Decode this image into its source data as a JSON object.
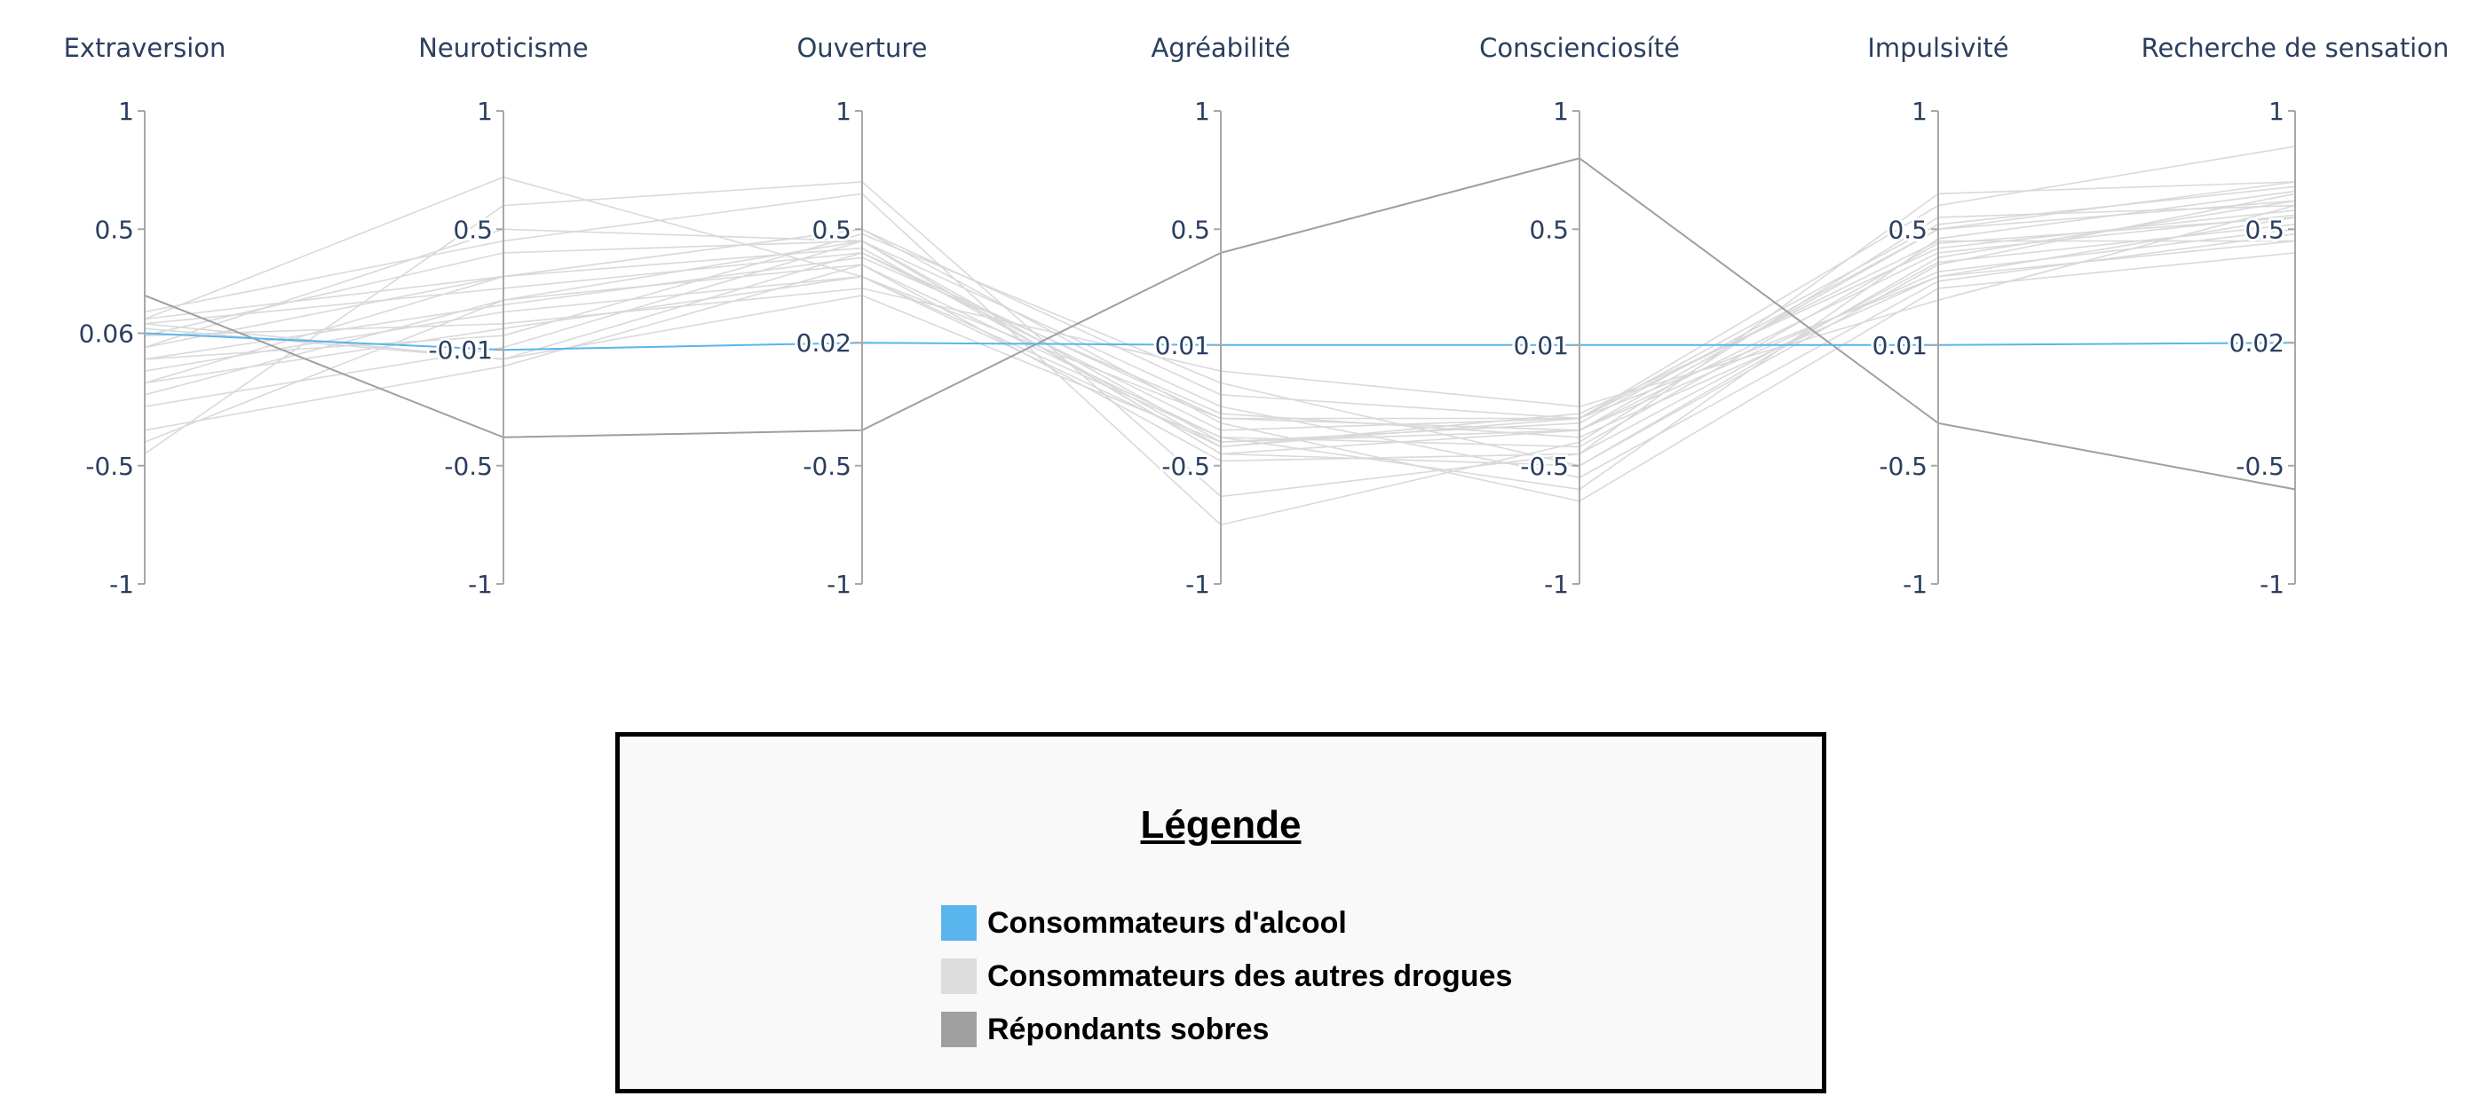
{
  "chart_data": {
    "type": "parallel_coordinates",
    "axes": [
      "Extraversion",
      "Neuroticisme",
      "Ouverture",
      "Agréabilité",
      "Conscienciosíté",
      "Impulsivité",
      "Recherche de sensation"
    ],
    "range": [
      -1,
      1
    ],
    "ticks": [
      [
        "-1",
        "-0.5",
        "0.06",
        "0.5",
        "1"
      ],
      [
        "-1",
        "-0.5",
        "-0.01",
        "0.5",
        "1"
      ],
      [
        "-1",
        "-0.5",
        "0.02",
        "0.5",
        "1"
      ],
      [
        "-1",
        "-0.5",
        "0.01",
        "0.5",
        "1"
      ],
      [
        "-1",
        "-0.5",
        "0.01",
        "0.5",
        "1"
      ],
      [
        "-1",
        "-0.5",
        "0.01",
        "0.5",
        "1"
      ],
      [
        "-1",
        "-0.5",
        "0.02",
        "0.5",
        "1"
      ]
    ],
    "tick_values": [
      [
        -1,
        -0.5,
        0.06,
        0.5,
        1
      ],
      [
        -1,
        -0.5,
        -0.01,
        0.5,
        1
      ],
      [
        -1,
        -0.5,
        0.02,
        0.5,
        1
      ],
      [
        -1,
        -0.5,
        0.01,
        0.5,
        1
      ],
      [
        -1,
        -0.5,
        0.01,
        0.5,
        1
      ],
      [
        -1,
        -0.5,
        0.01,
        0.5,
        1
      ],
      [
        -1,
        -0.5,
        0.02,
        0.5,
        1
      ]
    ],
    "series": [
      {
        "name": "Consommateurs d'alcool",
        "color": "#5ab4ee",
        "lines": [
          [
            0.06,
            -0.01,
            0.02,
            0.01,
            0.01,
            0.01,
            0.02
          ]
        ]
      },
      {
        "name": "Consommateurs des autres drogues",
        "color": "#d9d9d9",
        "lines": [
          [
            0.12,
            0.72,
            0.3,
            -0.3,
            -0.3,
            0.6,
            0.85
          ],
          [
            -0.45,
            0.6,
            0.7,
            -0.63,
            -0.45,
            0.65,
            0.7
          ],
          [
            0.15,
            0.45,
            0.65,
            -0.75,
            -0.4,
            0.55,
            0.6
          ],
          [
            0.0,
            0.5,
            0.45,
            -0.45,
            -0.5,
            0.35,
            0.65
          ],
          [
            -0.15,
            0.3,
            0.5,
            -0.2,
            -0.3,
            0.45,
            0.45
          ],
          [
            0.1,
            0.25,
            0.4,
            -0.35,
            -0.3,
            0.3,
            0.55
          ],
          [
            -0.4,
            0.2,
            0.45,
            -0.4,
            -0.35,
            0.5,
            0.7
          ],
          [
            0.05,
            0.1,
            0.25,
            -0.1,
            -0.25,
            0.2,
            0.6
          ],
          [
            -0.05,
            0.05,
            0.48,
            -0.15,
            -0.5,
            0.38,
            0.62
          ],
          [
            0.08,
            -0.05,
            0.4,
            -0.3,
            -0.35,
            0.32,
            0.5
          ],
          [
            -0.1,
            0.15,
            0.3,
            -0.42,
            -0.28,
            0.42,
            0.58
          ],
          [
            -0.25,
            0.0,
            0.45,
            -0.25,
            -0.55,
            0.28,
            0.48
          ],
          [
            -0.35,
            -0.08,
            0.35,
            -0.38,
            -0.6,
            0.46,
            0.66
          ],
          [
            0.0,
            0.3,
            0.5,
            -0.32,
            -0.65,
            0.25,
            0.4
          ],
          [
            0.05,
            0.4,
            0.45,
            -0.45,
            -0.35,
            0.4,
            0.56
          ],
          [
            -0.2,
            0.2,
            0.35,
            -0.48,
            -0.45,
            0.36,
            0.52
          ],
          [
            0.1,
            -0.05,
            0.22,
            -0.4,
            -0.32,
            0.5,
            0.62
          ],
          [
            -0.05,
            0.18,
            0.38,
            -0.28,
            -0.38,
            0.3,
            0.45
          ],
          [
            -0.15,
            0.08,
            0.3,
            -0.38,
            -0.42,
            0.44,
            0.55
          ],
          [
            0.12,
            0.3,
            0.42,
            -0.42,
            -0.3,
            0.52,
            0.68
          ]
        ]
      },
      {
        "name": "Répondants sobres",
        "color": "#9f9f9f",
        "lines": [
          [
            0.22,
            -0.38,
            -0.35,
            0.4,
            0.8,
            -0.32,
            -0.6
          ]
        ]
      }
    ]
  },
  "legend": {
    "title": "Légende",
    "items": [
      {
        "label": "Consommateurs d'alcool",
        "color": "#5ab4ee"
      },
      {
        "label": "Consommateurs des autres drogues",
        "color": "#dddddd"
      },
      {
        "label": "Répondants sobres",
        "color": "#9f9f9f"
      }
    ]
  }
}
